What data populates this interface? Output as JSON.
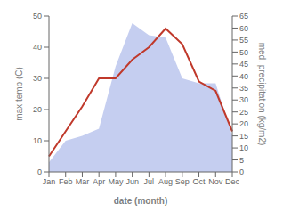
{
  "chart_data": {
    "type": "line",
    "categories": [
      "Jan",
      "Feb",
      "Mar",
      "Apr",
      "May",
      "Jun",
      "Jul",
      "Aug",
      "Sep",
      "Oct",
      "Nov",
      "Dec"
    ],
    "series": [
      {
        "type": "area",
        "color": "#c5cef0",
        "axis": "y2",
        "values": [
          4,
          13,
          15,
          18,
          44,
          62,
          57,
          56,
          39,
          37,
          37,
          15
        ]
      },
      {
        "type": "line",
        "color": "#c0392b",
        "values": [
          5,
          13,
          21,
          30,
          30,
          36,
          40,
          46,
          41,
          29,
          26,
          13
        ]
      }
    ],
    "xlabel": "date (month)",
    "ylabel": "max temp (C)",
    "y2label": "med. precipitation (kg/m2)",
    "ylim": [
      0,
      50
    ],
    "yticks": [
      0,
      10,
      20,
      30,
      40,
      50
    ],
    "y2lim": [
      0,
      65
    ],
    "y2ticks": [
      0,
      5,
      10,
      15,
      20,
      25,
      30,
      35,
      40,
      45,
      50,
      55,
      60,
      65
    ],
    "grid": false
  }
}
